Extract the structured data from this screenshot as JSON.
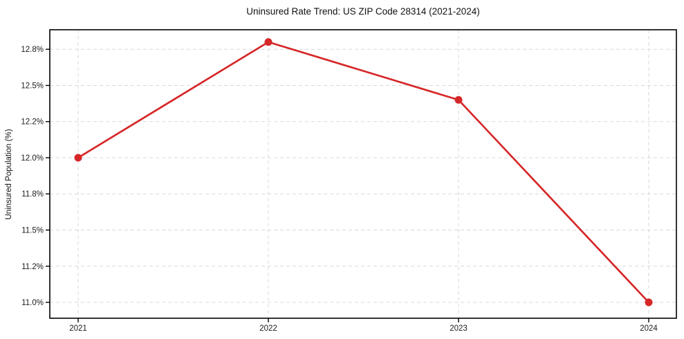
{
  "chart_data": {
    "type": "line",
    "title": "Uninsured Rate Trend: US ZIP Code 28314 (2021-2024)",
    "xlabel": "",
    "ylabel": "Uninsured Population (%)",
    "x": [
      2021,
      2022,
      2023,
      2024
    ],
    "x_labels": [
      "2021",
      "2022",
      "2023",
      "2024"
    ],
    "values": [
      12.0,
      12.8,
      12.4,
      11.0
    ],
    "value_labels": [
      "12.0%",
      "12.8%",
      "12.4%",
      "11.0%"
    ],
    "yticks_values": [
      11.0,
      11.25,
      11.5,
      11.75,
      12.0,
      12.25,
      12.5,
      12.75
    ],
    "yticks_labels": [
      "11.0%",
      "11.2%",
      "11.5%",
      "11.8%",
      "12.0%",
      "12.2%",
      "12.5%",
      "12.8%"
    ],
    "ylim": [
      10.89,
      12.885
    ],
    "grid": true,
    "grid_style": "dashed",
    "legend_position": "none",
    "marker": "circle",
    "colors": {
      "line": "#d62728",
      "marker": "#d62728",
      "grid": "#d8d8d8",
      "axis": "#000000",
      "text": "#1a1a1a",
      "background": "#ffffff"
    }
  }
}
